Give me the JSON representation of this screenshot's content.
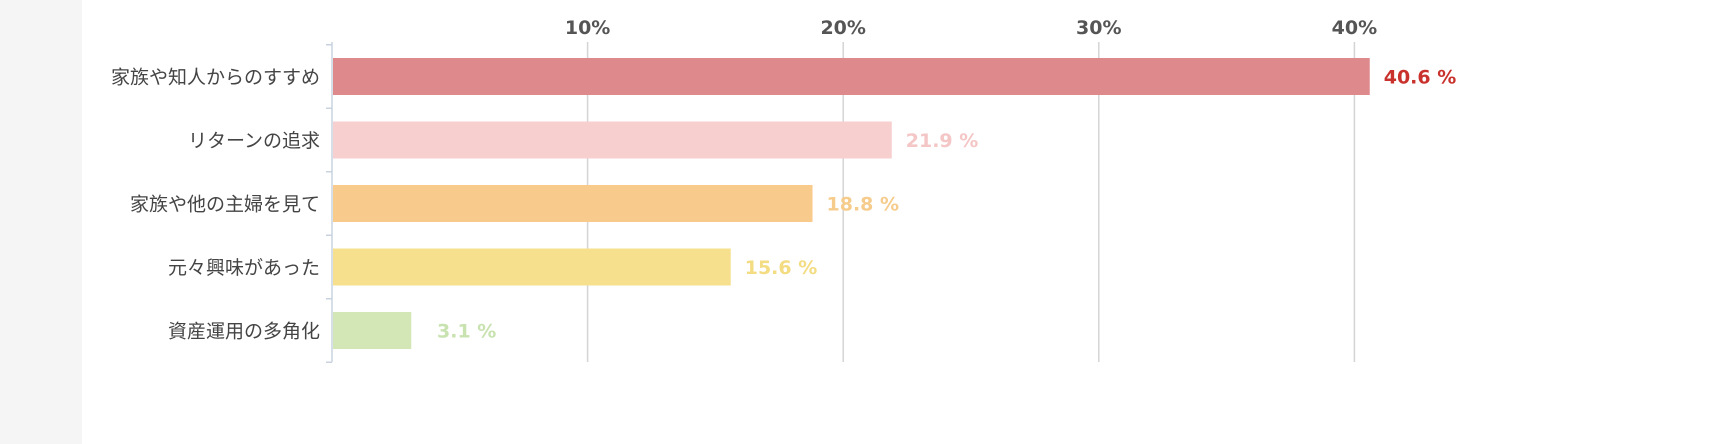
{
  "chart_data": {
    "type": "bar",
    "orientation": "horizontal",
    "categories": [
      "家族や知人からのすすめ",
      "リターンの追求",
      "家族や他の主婦を見て",
      "元々興味があった",
      "資産運用の多角化"
    ],
    "values": [
      40.6,
      21.9,
      18.8,
      15.6,
      3.1
    ],
    "data_labels": [
      "40.6 %",
      "21.9 %",
      "18.8 %",
      "15.6 %",
      "3.1 %"
    ],
    "bar_colors": [
      "#de8a8c",
      "#f7cfcf",
      "#f8cb8c",
      "#f6e08e",
      "#d2e6b6"
    ],
    "label_colors": [
      "#c9322c",
      "#f4c6c6",
      "#f6cc8c",
      "#f3dc82",
      "#c8e2b0"
    ],
    "x_ticks": [
      10,
      20,
      30,
      40
    ],
    "x_tick_labels": [
      "10%",
      "20%",
      "30%",
      "40%"
    ],
    "xlim": [
      0,
      45
    ],
    "grid": true,
    "axis_position": "top",
    "title": "",
    "xlabel": "",
    "ylabel": ""
  }
}
